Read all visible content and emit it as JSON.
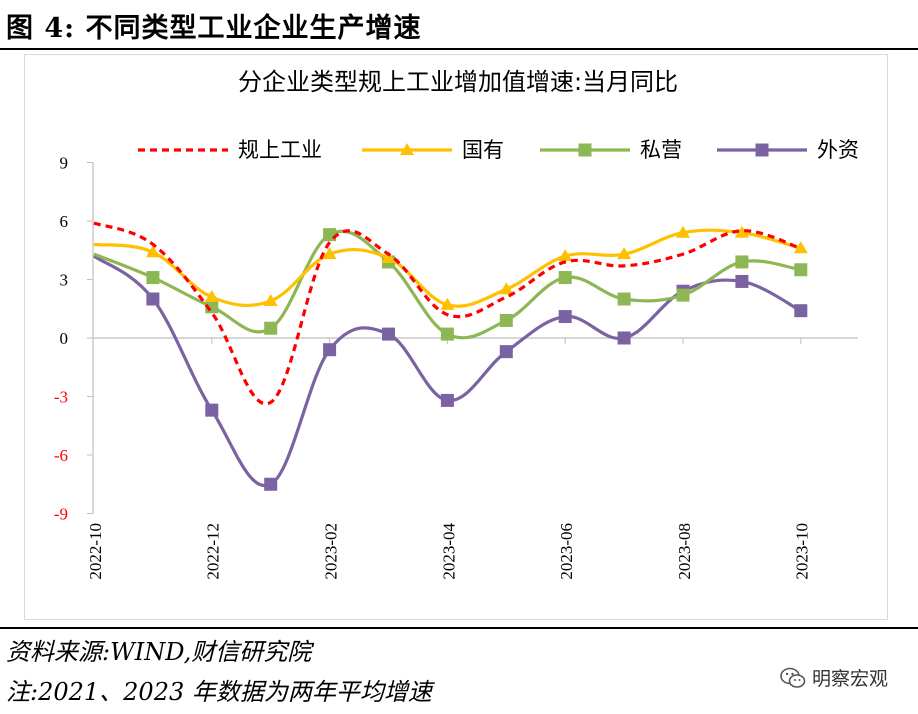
{
  "figure": {
    "title": "图 4:  不同类型工业企业生产增速",
    "source": "资料来源:WIND,财信研究院",
    "note": "注:2021、2023 年数据为两年平均增速",
    "watermark": "明察宏观"
  },
  "chart_data": {
    "type": "line",
    "title": "分企业类型规上工业增加值增速:当月同比",
    "xlabel": "",
    "ylabel": "",
    "ylim": [
      -9,
      9
    ],
    "yticks": [
      9,
      6,
      3,
      0,
      -3,
      -6,
      -9
    ],
    "categories": [
      "2022-10",
      "2022-11",
      "2022-12",
      "2023-01",
      "2023-02",
      "2023-03",
      "2023-04",
      "2023-05",
      "2023-06",
      "2023-07",
      "2023-08",
      "2023-09",
      "2023-10"
    ],
    "shown_xticks": [
      "2022-10",
      "2022-12",
      "2023-02",
      "2023-04",
      "2023-06",
      "2023-08",
      "2023-10"
    ],
    "legend_position": "top",
    "grid": false,
    "negative_tick_color": "#ff0000",
    "series": [
      {
        "name": "规上工业",
        "color": "#ff0000",
        "style": "dashed",
        "marker": "none",
        "values": [
          5.9,
          4.8,
          1.3,
          -3.3,
          4.9,
          4.3,
          1.2,
          2.1,
          3.9,
          3.7,
          4.3,
          5.5,
          4.6
        ]
      },
      {
        "name": "国有",
        "color": "#ffc000",
        "style": "solid",
        "marker": "triangle",
        "values": [
          4.8,
          4.4,
          2.1,
          1.9,
          4.3,
          4.1,
          1.7,
          2.5,
          4.2,
          4.3,
          5.4,
          5.4,
          4.6
        ]
      },
      {
        "name": "私营",
        "color": "#8db654",
        "style": "solid",
        "marker": "square",
        "values": [
          4.3,
          3.1,
          1.6,
          0.5,
          5.3,
          3.9,
          0.2,
          0.9,
          3.1,
          2.0,
          2.2,
          3.9,
          3.5
        ]
      },
      {
        "name": "外资",
        "color": "#7b62a3",
        "style": "solid",
        "marker": "square",
        "values": [
          4.2,
          2.0,
          -3.7,
          -7.5,
          -0.6,
          0.2,
          -3.2,
          -0.7,
          1.1,
          0.0,
          2.4,
          2.9,
          1.4
        ]
      }
    ]
  }
}
